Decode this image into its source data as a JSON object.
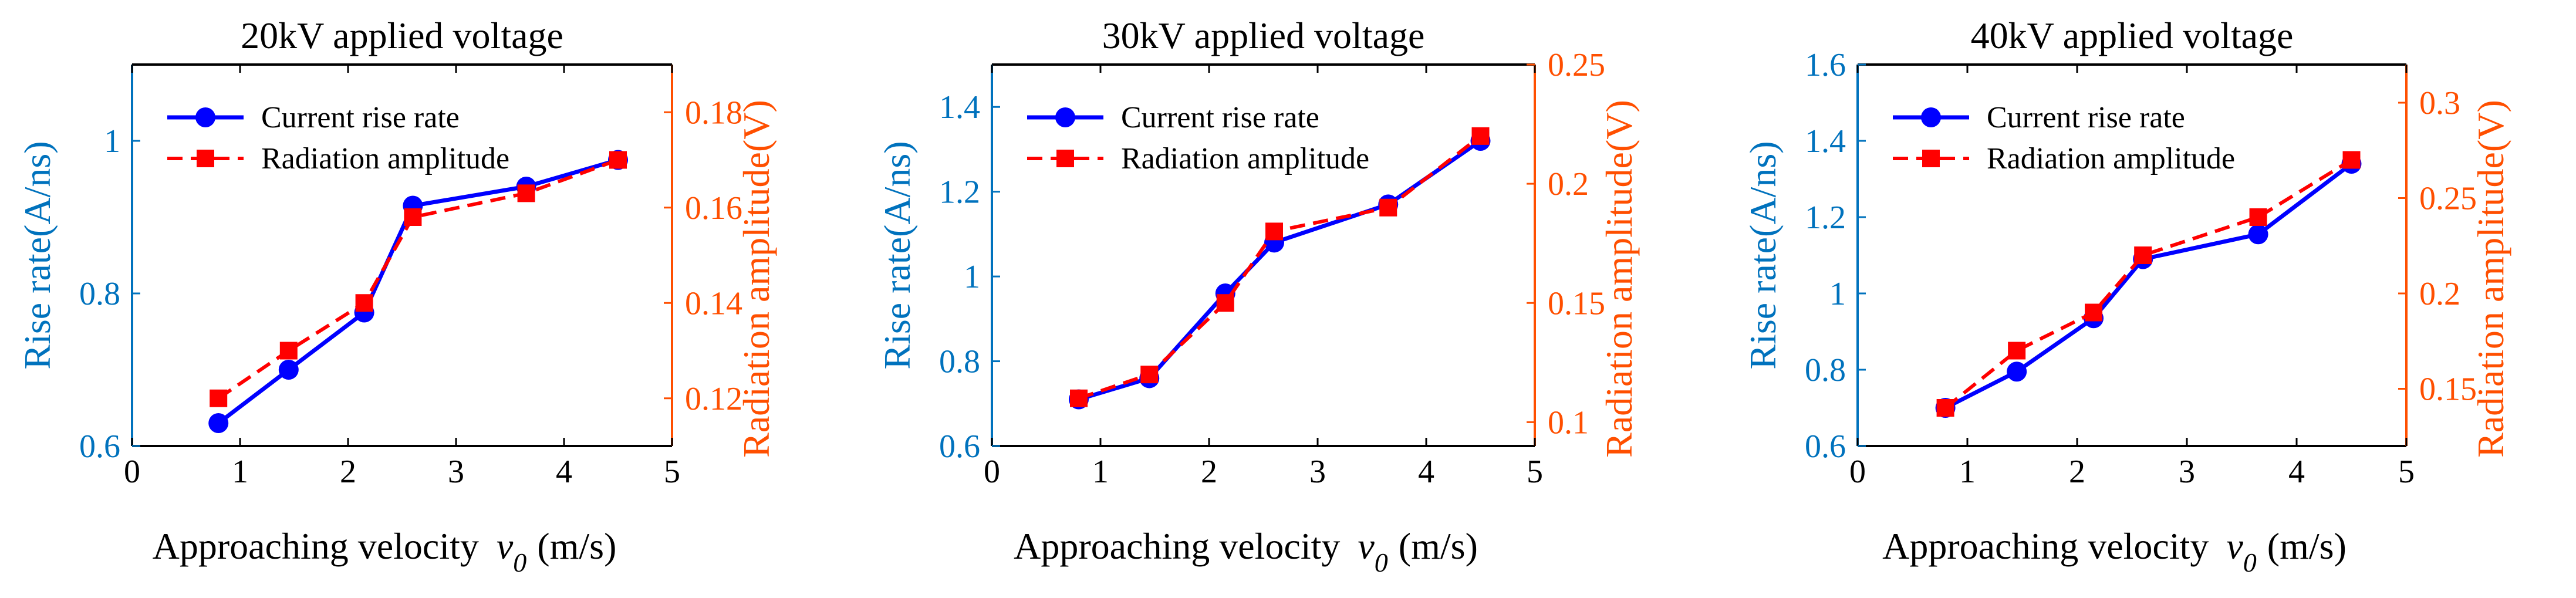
{
  "figure": {
    "description_title": "Rise rate and radiation amplitude vs approaching velocity",
    "colors": {
      "rise_rate": "#0000ff",
      "radiation": "#ff0000",
      "left_axis": "#0072bd",
      "right_axis": "#ff4f00",
      "text": "#000000"
    }
  },
  "chart_data": [
    {
      "type": "line",
      "title": "20kV applied voltage",
      "xlabel_prefix": "Approaching velocity",
      "xlabel_symbol": "v",
      "xlabel_subscript": "0",
      "xlabel_unit": "(m/s)",
      "ylabel_left": "Rise rate(A/ns)",
      "ylabel_right": "Radiation amplitude(V)",
      "xlim": [
        0,
        5
      ],
      "xticks": [
        0,
        1,
        2,
        3,
        4,
        5
      ],
      "ylim_left": [
        0.6,
        1.1
      ],
      "yticks_left": [
        0.6,
        0.8,
        1
      ],
      "ylim_right": [
        0.11,
        0.19
      ],
      "yticks_right": [
        0.12,
        0.14,
        0.16,
        0.18
      ],
      "legend": [
        "Current rise rate",
        "Radiation amplitude"
      ],
      "series": [
        {
          "name": "Current rise rate",
          "axis": "left",
          "x": [
            0.8,
            1.45,
            2.15,
            2.6,
            3.65,
            4.5
          ],
          "values": [
            0.63,
            0.7,
            0.775,
            0.915,
            0.94,
            0.975
          ]
        },
        {
          "name": "Radiation amplitude",
          "axis": "right",
          "x": [
            0.8,
            1.45,
            2.15,
            2.6,
            3.65,
            4.5
          ],
          "values": [
            0.12,
            0.13,
            0.14,
            0.158,
            0.163,
            0.17
          ]
        }
      ]
    },
    {
      "type": "line",
      "title": "30kV applied voltage",
      "xlabel_prefix": "Approaching velocity",
      "xlabel_symbol": "v",
      "xlabel_subscript": "0",
      "xlabel_unit": "(m/s)",
      "ylabel_left": "Rise rate(A/ns)",
      "ylabel_right": "Radiation amplitude(V)",
      "xlim": [
        0,
        5
      ],
      "xticks": [
        0,
        1,
        2,
        3,
        4,
        5
      ],
      "ylim_left": [
        0.6,
        1.5
      ],
      "yticks_left": [
        0.6,
        0.8,
        1,
        1.2,
        1.4
      ],
      "ylim_right": [
        0.09,
        0.25
      ],
      "yticks_right": [
        0.1,
        0.15,
        0.2,
        0.25
      ],
      "legend": [
        "Current rise rate",
        "Radiation amplitude"
      ],
      "series": [
        {
          "name": "Current rise rate",
          "axis": "left",
          "x": [
            0.8,
            1.45,
            2.15,
            2.6,
            3.65,
            4.5
          ],
          "values": [
            0.71,
            0.76,
            0.96,
            1.08,
            1.17,
            1.32
          ]
        },
        {
          "name": "Radiation amplitude",
          "axis": "right",
          "x": [
            0.8,
            1.45,
            2.15,
            2.6,
            3.65,
            4.5
          ],
          "values": [
            0.11,
            0.12,
            0.15,
            0.18,
            0.19,
            0.22
          ]
        }
      ]
    },
    {
      "type": "line",
      "title": "40kV applied voltage",
      "xlabel_prefix": "Approaching velocity",
      "xlabel_symbol": "v",
      "xlabel_subscript": "0",
      "xlabel_unit": "(m/s)",
      "ylabel_left": "Rise rate(A/ns)",
      "ylabel_right": "Radiation amplitude(V)",
      "xlim": [
        0,
        5
      ],
      "xticks": [
        0,
        1,
        2,
        3,
        4,
        5
      ],
      "ylim_left": [
        0.6,
        1.6
      ],
      "yticks_left": [
        0.6,
        0.8,
        1,
        1.2,
        1.4,
        1.6
      ],
      "ylim_right": [
        0.12,
        0.32
      ],
      "yticks_right": [
        0.15,
        0.2,
        0.25,
        0.3
      ],
      "legend": [
        "Current rise rate",
        "Radiation amplitude"
      ],
      "series": [
        {
          "name": "Current rise rate",
          "axis": "left",
          "x": [
            0.8,
            1.45,
            2.15,
            2.6,
            3.65,
            4.5
          ],
          "values": [
            0.7,
            0.795,
            0.935,
            1.09,
            1.155,
            1.34
          ]
        },
        {
          "name": "Radiation amplitude",
          "axis": "right",
          "x": [
            0.8,
            1.45,
            2.15,
            2.6,
            3.65,
            4.5
          ],
          "values": [
            0.14,
            0.17,
            0.19,
            0.22,
            0.24,
            0.27
          ]
        }
      ]
    }
  ]
}
